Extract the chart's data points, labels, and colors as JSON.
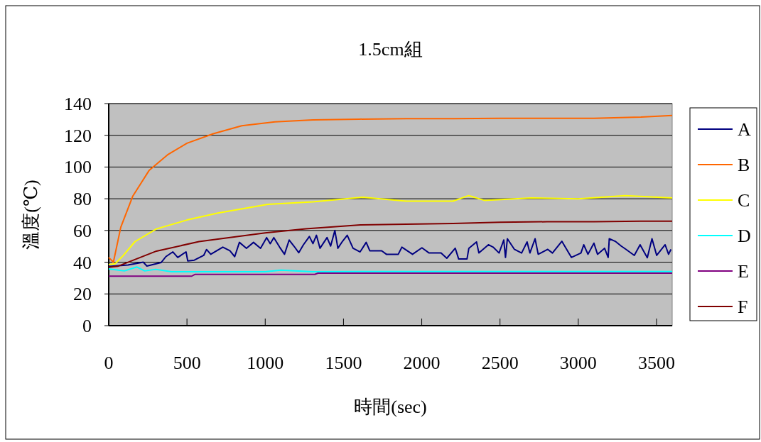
{
  "chart_data": {
    "type": "line",
    "title": "1.5cm組",
    "xlabel": "時間(sec)",
    "ylabel": "溫度(℃)",
    "xlim": [
      0,
      3600
    ],
    "ylim": [
      0,
      140
    ],
    "xticks": [
      0,
      500,
      1000,
      1500,
      2000,
      2500,
      3000,
      3500
    ],
    "yticks": [
      0,
      20,
      40,
      60,
      80,
      100,
      120,
      140
    ],
    "grid": "y",
    "legend": "right",
    "series": [
      {
        "name": "A",
        "color": "#000080",
        "x": [
          0,
          123,
          221,
          244,
          335,
          365,
          410,
          441,
          494,
          505,
          547,
          607,
          625,
          652,
          729,
          774,
          805,
          835,
          880,
          925,
          970,
          1009,
          1032,
          1055,
          1092,
          1123,
          1153,
          1183,
          1214,
          1244,
          1282,
          1305,
          1327,
          1350,
          1395,
          1418,
          1445,
          1464,
          1494,
          1524,
          1561,
          1606,
          1645,
          1668,
          1744,
          1774,
          1850,
          1873,
          1941,
          2001,
          2047,
          2123,
          2160,
          2214,
          2236,
          2289,
          2301,
          2350,
          2365,
          2426,
          2456,
          2494,
          2524,
          2535,
          2547,
          2592,
          2638,
          2673,
          2691,
          2724,
          2744,
          2805,
          2835,
          2895,
          2956,
          3017,
          3035,
          3062,
          3100,
          3123,
          3168,
          3191,
          3198,
          3236,
          3274,
          3305,
          3358,
          3395,
          3441,
          3471,
          3501,
          3555,
          3577,
          3592
        ],
        "values": [
          37.3,
          38.2,
          40,
          37.6,
          39.8,
          43.5,
          46.5,
          43,
          46.5,
          40.8,
          41.3,
          44.3,
          48,
          45,
          49.5,
          47.2,
          43.5,
          52.5,
          48.8,
          52.5,
          48.8,
          55.5,
          51.7,
          55.5,
          49.5,
          45,
          54,
          50.2,
          46,
          51,
          56.2,
          51.7,
          57,
          48.8,
          55.5,
          50.2,
          60,
          48.8,
          53.2,
          57,
          48.8,
          46.5,
          52.5,
          47.2,
          47.2,
          45,
          45,
          49.5,
          45,
          49.1,
          45.8,
          45.8,
          42.5,
          48.8,
          42,
          42,
          48.8,
          52.8,
          45.8,
          51,
          49.5,
          45.8,
          54,
          43,
          54.8,
          48.1,
          45.8,
          52.8,
          45.8,
          54.8,
          45,
          48.1,
          45.8,
          53.2,
          43,
          45.8,
          51,
          45,
          52,
          45,
          48.8,
          43,
          54.8,
          53.2,
          50.2,
          48.1,
          44.3,
          51,
          42.8,
          54.8,
          44.3,
          51,
          45,
          48.1
        ]
      },
      {
        "name": "B",
        "color": "#ff6600",
        "x": [
          0,
          30,
          77,
          153,
          259,
          380,
          500,
          668,
          850,
          1062,
          1305,
          1600,
          1900,
          2200,
          2500,
          2800,
          3100,
          3400,
          3600
        ],
        "values": [
          43,
          40,
          62,
          81.5,
          98,
          108,
          115,
          121,
          126,
          128.5,
          129.7,
          130.2,
          130.5,
          130.5,
          130.7,
          130.7,
          130.7,
          131.5,
          132.5
        ]
      },
      {
        "name": "C",
        "color": "#ffff00",
        "x": [
          0,
          40,
          91,
          168,
          305,
          500,
          698,
          1017,
          1305,
          1623,
          1900,
          2200,
          2300,
          2400,
          2700,
          3000,
          3300,
          3600
        ],
        "values": [
          38.5,
          39,
          44,
          53,
          61,
          66.6,
          71,
          76.5,
          78,
          81,
          78.5,
          78.5,
          82,
          79,
          80.5,
          80,
          82,
          80.5
        ]
      },
      {
        "name": "D",
        "color": "#00ffff",
        "x": [
          0,
          100,
          180,
          230,
          300,
          400,
          600,
          1000,
          1100,
          1300,
          1600,
          2400,
          3600
        ],
        "values": [
          35.8,
          34.5,
          37,
          34.5,
          35.5,
          34,
          34,
          34,
          35,
          34,
          34.1,
          34.1,
          34.1
        ]
      },
      {
        "name": "E",
        "color": "#800080",
        "x": [
          0,
          530,
          550,
          1317,
          1337,
          3600
        ],
        "values": [
          31.2,
          31.2,
          32.3,
          32.3,
          33.1,
          33.1
        ]
      },
      {
        "name": "F",
        "color": "#800000",
        "x": [
          0,
          60,
          305,
          577,
          1000,
          1259,
          1608,
          1900,
          2200,
          2500,
          2800,
          3100,
          3400,
          3600
        ],
        "values": [
          36.8,
          37.5,
          47,
          53,
          58.5,
          61,
          63.5,
          64,
          64.4,
          65.2,
          65.5,
          65.5,
          65.9,
          65.9
        ]
      }
    ]
  }
}
